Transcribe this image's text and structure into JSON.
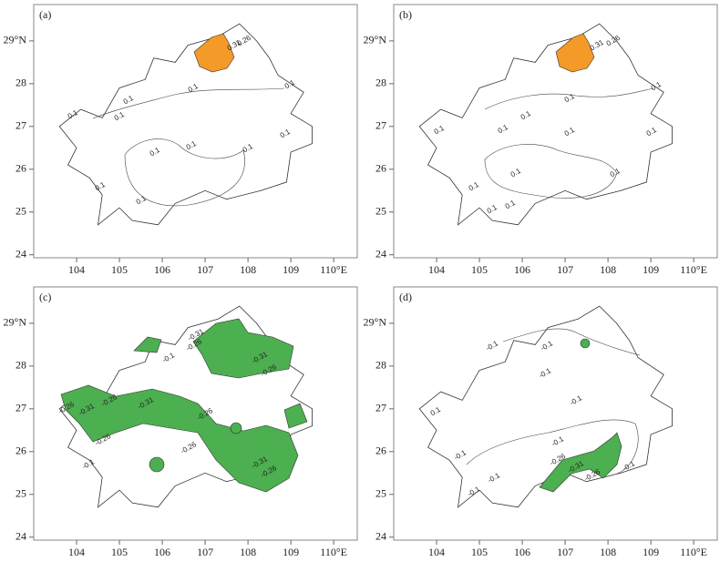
{
  "panels": [
    {
      "label": "(a)",
      "xlim": [
        103,
        110.55
      ],
      "ylim": [
        23.93,
        29.85
      ],
      "xticks": [
        104,
        105,
        106,
        107,
        108,
        109,
        {
          "value": 110,
          "label": "110°E"
        }
      ],
      "yticks": [
        24,
        25,
        26,
        27,
        28,
        {
          "value": 29,
          "label": "29°N"
        }
      ],
      "contour_labels": [
        0.31,
        0.26,
        0.1,
        0.1,
        0.1,
        0.1,
        0.1,
        0.1,
        0.1,
        0.1,
        0.1,
        0.1,
        0.1
      ]
    },
    {
      "label": "(b)",
      "xlim": [
        103,
        110.55
      ],
      "ylim": [
        23.93,
        29.85
      ],
      "xticks": [
        104,
        105,
        106,
        107,
        108,
        109,
        {
          "value": 110,
          "label": "110°E"
        }
      ],
      "yticks": [
        24,
        25,
        26,
        27,
        28,
        {
          "value": 29,
          "label": "29°N"
        }
      ],
      "contour_labels": [
        0.31,
        0.26,
        0.1,
        0.1,
        0.1,
        0.1,
        0.1,
        0.1,
        0.1,
        0.1,
        0.1,
        0.1,
        0.1,
        0.1
      ]
    },
    {
      "label": "(c)",
      "xlim": [
        103,
        110.55
      ],
      "ylim": [
        23.93,
        29.85
      ],
      "xticks": [
        104,
        105,
        106,
        107,
        108,
        109,
        {
          "value": 110,
          "label": "110°E"
        }
      ],
      "yticks": [
        24,
        25,
        26,
        27,
        28,
        {
          "value": 29,
          "label": "29°N"
        }
      ],
      "contour_labels": [
        -0.31,
        -0.26,
        -0.1,
        -0.31,
        -0.26,
        -0.26,
        -0.31,
        -0.26,
        -0.31,
        -0.26,
        -0.26,
        -0.26,
        -0.31,
        -0.26,
        -0.1
      ]
    },
    {
      "label": "(d)",
      "xlim": [
        103,
        110.55
      ],
      "ylim": [
        23.93,
        29.85
      ],
      "xticks": [
        104,
        105,
        106,
        107,
        108,
        109,
        {
          "value": 110,
          "label": "110°E"
        }
      ],
      "yticks": [
        24,
        25,
        26,
        27,
        28,
        {
          "value": 29,
          "label": "29°N"
        }
      ],
      "contour_labels": [
        -0.1,
        -0.1,
        -0.1,
        -0.1,
        0.1,
        -0.1,
        -0.26,
        -0.31,
        -0.26,
        -0.1,
        -0.1,
        -0.1,
        -0.1
      ]
    }
  ]
}
